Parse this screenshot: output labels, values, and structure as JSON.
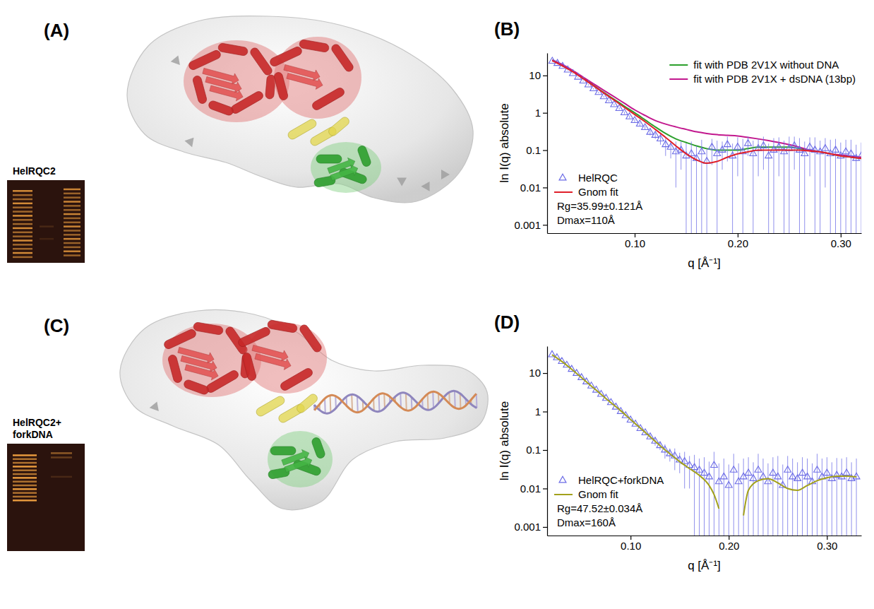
{
  "illustrations": [
    {
      "title": "(A)",
      "gel_label": [
        "HelRQC2"
      ]
    },
    {
      "title": "(C)",
      "gel_label": [
        "HelRQC2+",
        "forkDNA"
      ]
    }
  ],
  "chart_data": [
    {
      "type": "line",
      "title": "(B)",
      "x_label": "q [Å⁻¹]",
      "y_label": "ln I(q) absolute",
      "log": "y",
      "xlim": [
        0.015,
        0.32
      ],
      "ylim": [
        0.0006,
        40
      ],
      "xticks": [
        {
          "value": 0.1,
          "label": "0.10"
        },
        {
          "value": 0.2,
          "label": "0.20"
        },
        {
          "value": 0.3,
          "label": "0.30"
        }
      ],
      "yticks": [
        0.001,
        0.01,
        0.1,
        1,
        10
      ],
      "legend": "upper right",
      "annotations": [
        "Rg=35.99±0.121Å",
        "Dmax=110Å"
      ],
      "series": [
        {
          "name": "fit with PDB 2V1X without DNA",
          "type": "line",
          "color": "#2ca02c",
          "x": [
            0.02,
            0.03,
            0.04,
            0.05,
            0.06,
            0.07,
            0.08,
            0.09,
            0.1,
            0.11,
            0.12,
            0.13,
            0.14,
            0.15,
            0.16,
            0.17,
            0.18,
            0.19,
            0.2,
            0.21,
            0.22,
            0.23,
            0.24,
            0.25,
            0.26,
            0.27,
            0.28,
            0.29,
            0.3,
            0.31,
            0.32
          ],
          "values": [
            26,
            19,
            13,
            8.5,
            5.5,
            3.5,
            2.3,
            1.5,
            1.0,
            0.65,
            0.42,
            0.28,
            0.2,
            0.16,
            0.13,
            0.11,
            0.1,
            0.1,
            0.1,
            0.11,
            0.12,
            0.12,
            0.12,
            0.12,
            0.11,
            0.1,
            0.09,
            0.08,
            0.07,
            0.065,
            0.06
          ]
        },
        {
          "name": "fit with PDB 2V1X + dsDNA (13bp)",
          "type": "line",
          "color": "#c2188e",
          "x": [
            0.02,
            0.03,
            0.04,
            0.05,
            0.06,
            0.07,
            0.08,
            0.09,
            0.1,
            0.11,
            0.12,
            0.13,
            0.14,
            0.15,
            0.16,
            0.17,
            0.18,
            0.19,
            0.2,
            0.21,
            0.22,
            0.23,
            0.24,
            0.25,
            0.26,
            0.27,
            0.28,
            0.29,
            0.3,
            0.31,
            0.32
          ],
          "values": [
            26,
            19.5,
            13.5,
            9,
            6,
            4,
            2.7,
            1.8,
            1.2,
            0.85,
            0.62,
            0.5,
            0.42,
            0.36,
            0.31,
            0.28,
            0.26,
            0.25,
            0.24,
            0.22,
            0.2,
            0.18,
            0.16,
            0.14,
            0.12,
            0.1,
            0.09,
            0.08,
            0.075,
            0.07,
            0.065
          ]
        },
        {
          "name": "HelRQC",
          "type": "scatter",
          "marker": "triangle",
          "color": "#6b6be6",
          "x": [
            0.02,
            0.025,
            0.03,
            0.035,
            0.04,
            0.045,
            0.05,
            0.055,
            0.06,
            0.065,
            0.07,
            0.075,
            0.08,
            0.085,
            0.09,
            0.095,
            0.1,
            0.105,
            0.11,
            0.115,
            0.12,
            0.125,
            0.13,
            0.135,
            0.14,
            0.145,
            0.15,
            0.155,
            0.16,
            0.165,
            0.17,
            0.175,
            0.18,
            0.185,
            0.19,
            0.195,
            0.2,
            0.205,
            0.21,
            0.215,
            0.22,
            0.225,
            0.23,
            0.235,
            0.24,
            0.245,
            0.25,
            0.255,
            0.26,
            0.265,
            0.27,
            0.275,
            0.28,
            0.285,
            0.29,
            0.295,
            0.3,
            0.305,
            0.31,
            0.315,
            0.32
          ],
          "values": [
            24,
            21,
            17.5,
            14,
            11.2,
            9,
            7.1,
            5.6,
            4.4,
            3.5,
            2.7,
            2.1,
            1.65,
            1.3,
            1.0,
            0.78,
            0.62,
            0.5,
            0.4,
            0.3,
            0.25,
            0.2,
            0.14,
            0.12,
            0.09,
            0.1,
            0.07,
            0.08,
            0.06,
            0.09,
            0.05,
            0.12,
            0.08,
            0.1,
            0.14,
            0.07,
            0.12,
            0.09,
            0.15,
            0.08,
            0.11,
            0.13,
            0.07,
            0.1,
            0.12,
            0.09,
            0.11,
            0.13,
            0.1,
            0.08,
            0.12,
            0.1,
            0.09,
            0.11,
            0.08,
            0.1,
            0.07,
            0.09,
            0.08,
            0.06,
            0.07
          ],
          "error": [
            0.8,
            0.7,
            0.6,
            0.5,
            0.4,
            0.35,
            0.3,
            0.25,
            0.2,
            0.18,
            0.15,
            0.12,
            0.1,
            0.09,
            0.08,
            0.07,
            0.06,
            0.06,
            0.05,
            0.05,
            0.05,
            0.06,
            0.07,
            0.06,
            0.08,
            0.07,
            0.08,
            0.09,
            0.07,
            0.1,
            0.06,
            0.08,
            0.1,
            0.07,
            0.09,
            0.08,
            0.1,
            0.11,
            0.08,
            0.1,
            0.09,
            0.1,
            0.08,
            0.11,
            0.1,
            0.09,
            0.12,
            0.1,
            0.11,
            0.09,
            0.1,
            0.12,
            0.09,
            0.1,
            0.11,
            0.1,
            0.09,
            0.1,
            0.11,
            0.08,
            0.09
          ]
        },
        {
          "name": "Gnom fit",
          "type": "line",
          "color": "#e0202a",
          "x": [
            0.02,
            0.03,
            0.04,
            0.05,
            0.06,
            0.07,
            0.08,
            0.09,
            0.1,
            0.11,
            0.12,
            0.13,
            0.14,
            0.15,
            0.16,
            0.17,
            0.18,
            0.19,
            0.2,
            0.21,
            0.22,
            0.23,
            0.24,
            0.25,
            0.26,
            0.27,
            0.28,
            0.29,
            0.3,
            0.31,
            0.32
          ],
          "values": [
            25,
            18,
            12.5,
            8.2,
            5.3,
            3.4,
            2.2,
            1.4,
            0.9,
            0.58,
            0.36,
            0.22,
            0.13,
            0.08,
            0.055,
            0.045,
            0.05,
            0.065,
            0.08,
            0.09,
            0.1,
            0.1,
            0.1,
            0.1,
            0.1,
            0.095,
            0.09,
            0.08,
            0.07,
            0.065,
            0.06
          ]
        }
      ]
    },
    {
      "type": "line",
      "title": "(D)",
      "x_label": "q [Å⁻¹]",
      "y_label": "ln I(q) absolute",
      "log": "y",
      "xlim": [
        0.015,
        0.335
      ],
      "ylim": [
        0.0006,
        50
      ],
      "xticks": [
        {
          "value": 0.1,
          "label": "0.10"
        },
        {
          "value": 0.2,
          "label": "0.20"
        },
        {
          "value": 0.3,
          "label": "0.30"
        }
      ],
      "yticks": [
        0.001,
        0.01,
        0.1,
        1,
        10
      ],
      "legend": "lower left",
      "annotations": [
        "Rg=47.52±0.034Å",
        "Dmax=160Å"
      ],
      "series": [
        {
          "name": "HelRQC+forkDNA",
          "type": "scatter",
          "marker": "triangle",
          "color": "#6b6be6",
          "x": [
            0.02,
            0.025,
            0.03,
            0.035,
            0.04,
            0.045,
            0.05,
            0.055,
            0.06,
            0.065,
            0.07,
            0.075,
            0.08,
            0.085,
            0.09,
            0.095,
            0.1,
            0.105,
            0.11,
            0.115,
            0.12,
            0.125,
            0.13,
            0.135,
            0.14,
            0.145,
            0.15,
            0.155,
            0.16,
            0.165,
            0.17,
            0.175,
            0.18,
            0.185,
            0.19,
            0.195,
            0.2,
            0.205,
            0.21,
            0.215,
            0.22,
            0.225,
            0.23,
            0.235,
            0.24,
            0.245,
            0.25,
            0.255,
            0.26,
            0.265,
            0.27,
            0.275,
            0.28,
            0.285,
            0.29,
            0.295,
            0.3,
            0.305,
            0.31,
            0.315,
            0.32,
            0.325,
            0.33
          ],
          "values": [
            30,
            25,
            20,
            16,
            12.5,
            9.8,
            7.6,
            5.9,
            4.6,
            3.6,
            2.8,
            2.2,
            1.7,
            1.3,
            1.0,
            0.78,
            0.6,
            0.47,
            0.36,
            0.28,
            0.22,
            0.17,
            0.13,
            0.1,
            0.08,
            0.07,
            0.055,
            0.05,
            0.04,
            0.035,
            0.03,
            0.025,
            0.02,
            0.04,
            0.015,
            0.02,
            0.012,
            0.03,
            0.015,
            0.02,
            0.025,
            0.018,
            0.03,
            0.02,
            0.015,
            0.025,
            0.02,
            0.012,
            0.03,
            0.02,
            0.018,
            0.025,
            0.02,
            0.015,
            0.03,
            0.02,
            0.025,
            0.018,
            0.022,
            0.02,
            0.025,
            0.018,
            0.02
          ],
          "error": [
            0.3,
            0.25,
            0.2,
            0.16,
            0.13,
            0.1,
            0.08,
            0.06,
            0.05,
            0.04,
            0.03,
            0.03,
            0.03,
            0.03,
            0.03,
            0.03,
            0.03,
            0.03,
            0.03,
            0.03,
            0.03,
            0.04,
            0.03,
            0.04,
            0.03,
            0.04,
            0.03,
            0.04,
            0.03,
            0.04,
            0.03,
            0.04,
            0.03,
            0.05,
            0.03,
            0.04,
            0.03,
            0.05,
            0.03,
            0.04,
            0.04,
            0.03,
            0.05,
            0.04,
            0.03,
            0.04,
            0.05,
            0.03,
            0.04,
            0.04,
            0.03,
            0.04,
            0.04,
            0.03,
            0.05,
            0.04,
            0.04,
            0.03,
            0.04,
            0.04,
            0.04,
            0.03,
            0.04
          ]
        },
        {
          "name": "Gnom fit",
          "type": "line",
          "color": "#a3a11c",
          "x": [
            0.02,
            0.03,
            0.04,
            0.05,
            0.06,
            0.07,
            0.08,
            0.09,
            0.1,
            0.11,
            0.12,
            0.13,
            0.14,
            0.15,
            0.16,
            0.17,
            0.18,
            0.185,
            0.19,
            0.195,
            0.2,
            0.205,
            0.21,
            0.215,
            0.22,
            0.23,
            0.24,
            0.25,
            0.26,
            0.27,
            0.28,
            0.29,
            0.3,
            0.31,
            0.32,
            0.33
          ],
          "values": [
            30,
            20,
            12.5,
            7.6,
            4.6,
            2.8,
            1.7,
            1.05,
            0.62,
            0.37,
            0.22,
            0.13,
            0.08,
            0.05,
            0.033,
            0.022,
            0.012,
            0.007,
            0.003,
            null,
            null,
            null,
            null,
            0.002,
            0.009,
            0.016,
            0.018,
            0.014,
            0.01,
            0.009,
            0.012,
            0.016,
            0.019,
            0.021,
            0.021,
            0.02
          ]
        }
      ]
    }
  ]
}
